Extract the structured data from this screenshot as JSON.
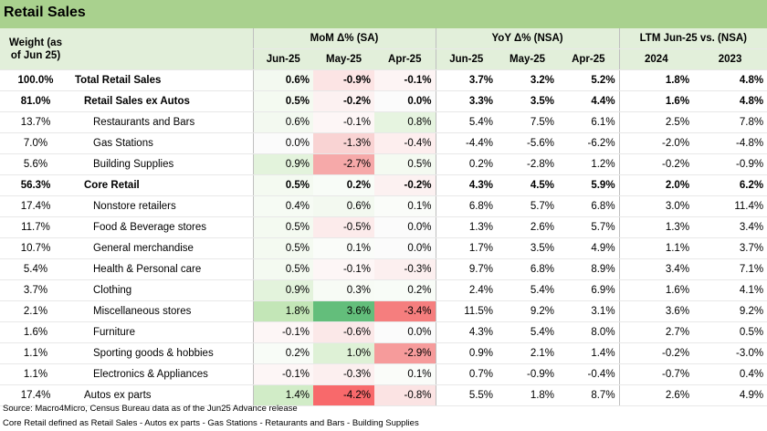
{
  "title": "Retail Sales",
  "headers": {
    "weight": "Weight (as of Jun 25)",
    "groups": [
      "MoM Δ% (SA)",
      "YoY Δ% (NSA)",
      "LTM Jun-25 vs. (NSA)"
    ],
    "cols": [
      "Jun-25",
      "May-25",
      "Apr-25",
      "Jun-25",
      "May-25",
      "Apr-25",
      "2024",
      "2023"
    ]
  },
  "rows": [
    {
      "weight": "100.0%",
      "label": "Total Retail Sales",
      "bold": true,
      "indent": 0,
      "values": [
        "0.6%",
        "-0.9%",
        "-0.1%",
        "3.7%",
        "3.2%",
        "5.2%",
        "1.8%",
        "4.8%"
      ],
      "bg": [
        "#f3f9f0",
        "#fce4e4",
        "#fdf4f4",
        "",
        "",
        "",
        "",
        ""
      ]
    },
    {
      "weight": "81.0%",
      "label": "Retail Sales ex Autos",
      "bold": true,
      "indent": 1,
      "values": [
        "0.5%",
        "-0.2%",
        "0.0%",
        "3.3%",
        "3.5%",
        "4.4%",
        "1.6%",
        "4.8%"
      ],
      "bg": [
        "#f4faf1",
        "#fcf1f1",
        "#fbfbfb",
        "",
        "",
        "",
        "",
        ""
      ]
    },
    {
      "weight": "13.7%",
      "label": "Restaurants and Bars",
      "bold": false,
      "indent": 2,
      "values": [
        "0.6%",
        "-0.1%",
        "0.8%",
        "5.4%",
        "7.5%",
        "6.1%",
        "2.5%",
        "7.8%"
      ],
      "bg": [
        "#f3f9f0",
        "#fdf6f6",
        "#e6f4e0",
        "",
        "",
        "",
        "",
        ""
      ]
    },
    {
      "weight": "7.0%",
      "label": "Gas Stations",
      "bold": false,
      "indent": 2,
      "values": [
        "0.0%",
        "-1.3%",
        "-0.4%",
        "-4.4%",
        "-5.6%",
        "-6.2%",
        "-2.0%",
        "-4.8%"
      ],
      "bg": [
        "#fbfbfb",
        "#f9d3d3",
        "#fdeeee",
        "",
        "",
        "",
        "",
        ""
      ]
    },
    {
      "weight": "5.6%",
      "label": "Building Supplies",
      "bold": false,
      "indent": 2,
      "values": [
        "0.9%",
        "-2.7%",
        "0.5%",
        "0.2%",
        "-2.8%",
        "1.2%",
        "-0.2%",
        "-0.9%"
      ],
      "bg": [
        "#e3f3dc",
        "#f6a9a9",
        "#f4faf1",
        "",
        "",
        "",
        "",
        ""
      ]
    },
    {
      "weight": "56.3%",
      "label": "Core Retail",
      "bold": true,
      "indent": 1,
      "values": [
        "0.5%",
        "0.2%",
        "-0.2%",
        "4.3%",
        "4.5%",
        "5.9%",
        "2.0%",
        "6.2%"
      ],
      "bg": [
        "#f4faf1",
        "#f8fcf7",
        "#fcf1f1",
        "",
        "",
        "",
        "",
        ""
      ]
    },
    {
      "weight": "17.4%",
      "label": "Nonstore retailers",
      "bold": false,
      "indent": 2,
      "values": [
        "0.4%",
        "0.6%",
        "0.1%",
        "6.8%",
        "5.7%",
        "6.8%",
        "3.0%",
        "11.4%"
      ],
      "bg": [
        "#f6fbf4",
        "#f3f9f0",
        "#fafcf9",
        "",
        "",
        "",
        "",
        ""
      ]
    },
    {
      "weight": "11.7%",
      "label": "Food & Beverage stores",
      "bold": false,
      "indent": 2,
      "values": [
        "0.5%",
        "-0.5%",
        "0.0%",
        "1.3%",
        "2.6%",
        "5.7%",
        "1.3%",
        "3.4%"
      ],
      "bg": [
        "#f4faf1",
        "#fcebeb",
        "#fbfbfb",
        "",
        "",
        "",
        "",
        ""
      ]
    },
    {
      "weight": "10.7%",
      "label": "General merchandise",
      "bold": false,
      "indent": 2,
      "values": [
        "0.5%",
        "0.1%",
        "0.0%",
        "1.7%",
        "3.5%",
        "4.9%",
        "1.1%",
        "3.7%"
      ],
      "bg": [
        "#f4faf1",
        "#fafcf9",
        "#fbfbfb",
        "",
        "",
        "",
        "",
        ""
      ]
    },
    {
      "weight": "5.4%",
      "label": "Health & Personal care",
      "bold": false,
      "indent": 2,
      "values": [
        "0.5%",
        "-0.1%",
        "-0.3%",
        "9.7%",
        "6.8%",
        "8.9%",
        "3.4%",
        "7.1%"
      ],
      "bg": [
        "#f4faf1",
        "#fdf6f6",
        "#fcefef",
        "",
        "",
        "",
        "",
        ""
      ]
    },
    {
      "weight": "3.7%",
      "label": "Clothing",
      "bold": false,
      "indent": 2,
      "values": [
        "0.9%",
        "0.3%",
        "0.2%",
        "2.4%",
        "5.4%",
        "6.9%",
        "1.6%",
        "4.1%"
      ],
      "bg": [
        "#e3f3dc",
        "#f7fbf5",
        "#f8fcf7",
        "",
        "",
        "",
        "",
        ""
      ]
    },
    {
      "weight": "2.1%",
      "label": "Miscellaneous stores",
      "bold": false,
      "indent": 2,
      "values": [
        "1.8%",
        "3.6%",
        "-3.4%",
        "11.5%",
        "9.2%",
        "3.1%",
        "3.6%",
        "9.2%"
      ],
      "bg": [
        "#c3e6b7",
        "#63be7b",
        "#f57e7e",
        "",
        "",
        "",
        "",
        ""
      ]
    },
    {
      "weight": "1.6%",
      "label": "Furniture",
      "bold": false,
      "indent": 2,
      "values": [
        "-0.1%",
        "-0.6%",
        "0.0%",
        "4.3%",
        "5.4%",
        "8.0%",
        "2.7%",
        "0.5%"
      ],
      "bg": [
        "#fdf6f6",
        "#fbe8e8",
        "#fbfbfb",
        "",
        "",
        "",
        "",
        ""
      ]
    },
    {
      "weight": "1.1%",
      "label": "Sporting goods & hobbies",
      "bold": false,
      "indent": 2,
      "values": [
        "0.2%",
        "1.0%",
        "-2.9%",
        "0.9%",
        "2.1%",
        "1.4%",
        "-0.2%",
        "-3.0%"
      ],
      "bg": [
        "#f8fcf7",
        "#def1d6",
        "#f69b9b",
        "",
        "",
        "",
        "",
        ""
      ]
    },
    {
      "weight": "1.1%",
      "label": "Electronics & Appliances",
      "bold": false,
      "indent": 2,
      "values": [
        "-0.1%",
        "-0.3%",
        "0.1%",
        "0.7%",
        "-0.9%",
        "-0.4%",
        "-0.7%",
        "0.4%"
      ],
      "bg": [
        "#fdf6f6",
        "#fcefef",
        "#fafcf9",
        "",
        "",
        "",
        "",
        ""
      ]
    },
    {
      "weight": "17.4%",
      "label": "Autos ex parts",
      "bold": false,
      "indent": 1,
      "values": [
        "1.4%",
        "-4.2%",
        "-0.8%",
        "5.5%",
        "1.8%",
        "8.7%",
        "2.6%",
        "4.9%"
      ],
      "bg": [
        "#d1ecc7",
        "#f8696b",
        "#fbe3e3",
        "",
        "",
        "",
        "",
        ""
      ]
    }
  ],
  "footer": {
    "source": "Source: Macro4Micro, Census Bureau    data as of the Jun25 Advance release",
    "note": "Core Retail defined as Retail Sales - Autos ex parts - Gas Stations - Retaurants and Bars - Building Supplies"
  }
}
